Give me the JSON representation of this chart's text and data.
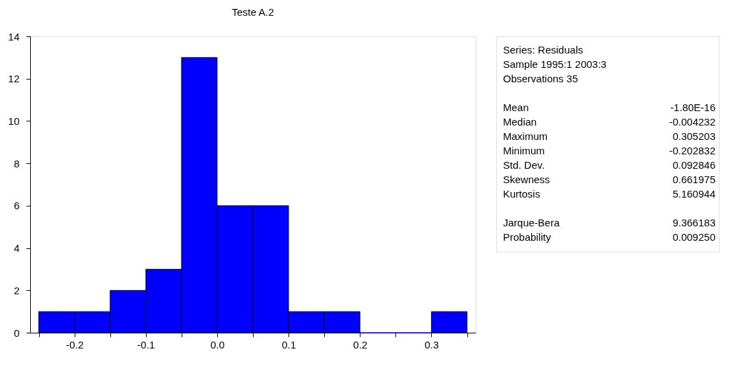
{
  "chart_data": {
    "type": "histogram",
    "title": "Teste A.2",
    "bins": [
      -0.25,
      -0.2,
      -0.15,
      -0.1,
      -0.05,
      0,
      0.05,
      0.1,
      0.15,
      0.2,
      0.25,
      0.3,
      0.35
    ],
    "values": [
      1,
      1,
      2,
      3,
      13,
      6,
      6,
      1,
      1,
      0,
      0,
      1
    ],
    "color": "#0000ff",
    "xlim": [
      -0.262,
      0.362
    ],
    "xticks": [
      {
        "value": -0.25,
        "label": null
      },
      -0.2,
      {
        "value": -0.15,
        "label": null
      },
      -0.1,
      {
        "value": -0.05,
        "label": null
      },
      {
        "value": 0,
        "label": "0.0"
      },
      {
        "value": 0.05,
        "label": null
      },
      0.1,
      {
        "value": 0.15,
        "label": null
      },
      0.2,
      {
        "value": 0.25,
        "label": null
      },
      0.3,
      {
        "value": 0.35,
        "label": null
      }
    ],
    "ylim": [
      0,
      14
    ],
    "yticks": [
      0,
      2,
      4,
      6,
      8,
      10,
      12,
      14
    ],
    "grid": false,
    "annotations": [
      "Series: Residuals",
      "Sample 1995:1 2003:3",
      "Observations 35",
      "Mean",
      "-1.80E-16",
      "Median",
      "-0.004232",
      "Maximum",
      "0.305203",
      "Minimum",
      "-0.202832",
      "Std. Dev.",
      "0.092846",
      "Skewness",
      "0.661975",
      "Kurtosis",
      "5.160944",
      "Jarque-Bera",
      "9.366183",
      "Probability",
      "0.009250"
    ]
  }
}
